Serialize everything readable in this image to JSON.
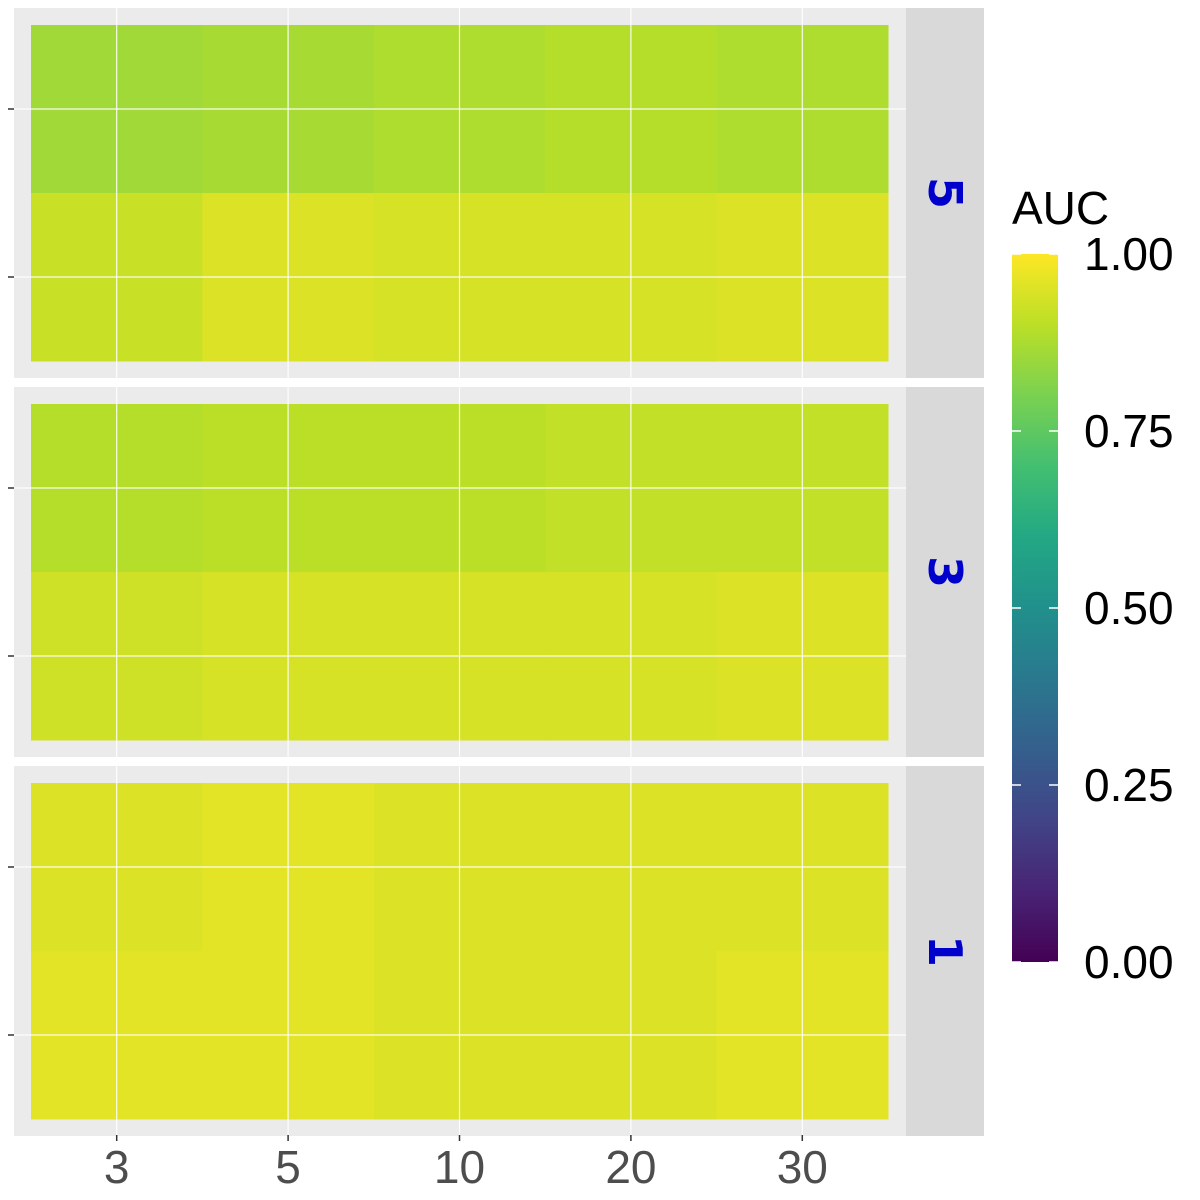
{
  "chart_data": {
    "type": "heatmap",
    "x_categories": [
      "3",
      "5",
      "10",
      "20",
      "30"
    ],
    "rows_per_facet": 2,
    "facets": [
      {
        "label": "5",
        "rows": [
          [
            0.86,
            0.87,
            0.88,
            0.89,
            0.88
          ],
          [
            0.92,
            0.95,
            0.94,
            0.94,
            0.95
          ]
        ]
      },
      {
        "label": "3",
        "rows": [
          [
            0.89,
            0.9,
            0.9,
            0.91,
            0.91
          ],
          [
            0.93,
            0.94,
            0.94,
            0.94,
            0.95
          ]
        ]
      },
      {
        "label": "1",
        "rows": [
          [
            0.95,
            0.96,
            0.95,
            0.95,
            0.95
          ],
          [
            0.96,
            0.96,
            0.95,
            0.95,
            0.96
          ]
        ]
      }
    ],
    "legend": {
      "title": "AUC",
      "min": 0,
      "max": 1,
      "breaks": [
        "1.00",
        "0.75",
        "0.50",
        "0.25",
        "0.00"
      ],
      "palette": "viridis"
    },
    "colors": {
      "panel_background": "#EBEBEB",
      "strip_background": "#D9D9D9",
      "strip_text": "#0000CD",
      "grid": "#FFFFFF",
      "axis_text": "#4D4D4D"
    }
  }
}
